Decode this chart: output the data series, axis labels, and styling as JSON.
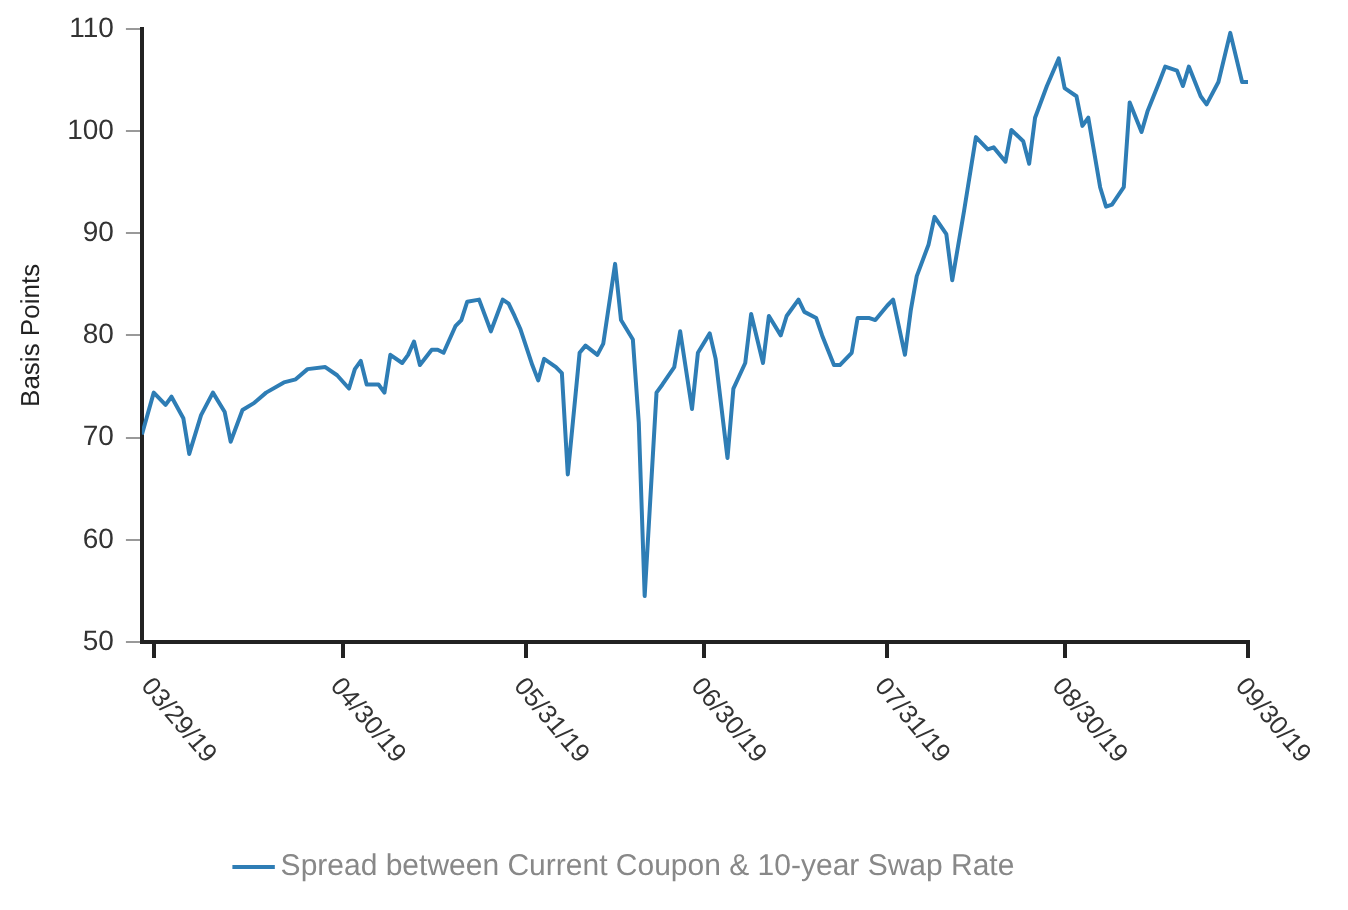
{
  "chart_data": {
    "type": "line",
    "ylabel": "Basis Points",
    "x": [
      "2019-03-27",
      "2019-03-29",
      "2019-03-31",
      "2019-04-01",
      "2019-04-03",
      "2019-04-04",
      "2019-04-06",
      "2019-04-08",
      "2019-04-10",
      "2019-04-11",
      "2019-04-13",
      "2019-04-15",
      "2019-04-17",
      "2019-04-20",
      "2019-04-22",
      "2019-04-24",
      "2019-04-27",
      "2019-04-29",
      "2019-05-01",
      "2019-05-02",
      "2019-05-03",
      "2019-05-04",
      "2019-05-06",
      "2019-05-07",
      "2019-05-08",
      "2019-05-10",
      "2019-05-11",
      "2019-05-12",
      "2019-05-13",
      "2019-05-15",
      "2019-05-16",
      "2019-05-17",
      "2019-05-19",
      "2019-05-20",
      "2019-05-21",
      "2019-05-23",
      "2019-05-25",
      "2019-05-27",
      "2019-05-28",
      "2019-05-29",
      "2019-05-30",
      "2019-06-01",
      "2019-06-02",
      "2019-06-03",
      "2019-06-05",
      "2019-06-06",
      "2019-06-07",
      "2019-06-09",
      "2019-06-10",
      "2019-06-12",
      "2019-06-13",
      "2019-06-15",
      "2019-06-16",
      "2019-06-18",
      "2019-06-19",
      "2019-06-20",
      "2019-06-22",
      "2019-06-23",
      "2019-06-25",
      "2019-06-26",
      "2019-06-28",
      "2019-06-29",
      "2019-07-01",
      "2019-07-02",
      "2019-07-04",
      "2019-07-05",
      "2019-07-07",
      "2019-07-08",
      "2019-07-10",
      "2019-07-11",
      "2019-07-13",
      "2019-07-14",
      "2019-07-16",
      "2019-07-17",
      "2019-07-19",
      "2019-07-20",
      "2019-07-22",
      "2019-07-23",
      "2019-07-25",
      "2019-07-26",
      "2019-07-28",
      "2019-07-29",
      "2019-07-31",
      "2019-08-01",
      "2019-08-03",
      "2019-08-04",
      "2019-08-05",
      "2019-08-07",
      "2019-08-08",
      "2019-08-10",
      "2019-08-11",
      "2019-08-13",
      "2019-08-15",
      "2019-08-17",
      "2019-08-18",
      "2019-08-20",
      "2019-08-21",
      "2019-08-23",
      "2019-08-24",
      "2019-08-25",
      "2019-08-27",
      "2019-08-29",
      "2019-08-30",
      "2019-09-01",
      "2019-09-02",
      "2019-09-03",
      "2019-09-05",
      "2019-09-06",
      "2019-09-07",
      "2019-09-09",
      "2019-09-10",
      "2019-09-12",
      "2019-09-13",
      "2019-09-15",
      "2019-09-16",
      "2019-09-18",
      "2019-09-19",
      "2019-09-20",
      "2019-09-22",
      "2019-09-23",
      "2019-09-25",
      "2019-09-27",
      "2019-09-29",
      "2019-09-30"
    ],
    "series": [
      {
        "name": "Spread between Current Coupon & 10-year Swap Rate",
        "color": "#2e7db5",
        "values": [
          70.3,
          74.4,
          73.2,
          74.0,
          71.9,
          68.4,
          72.2,
          74.4,
          72.5,
          69.6,
          72.7,
          73.4,
          74.4,
          75.4,
          75.7,
          76.7,
          76.9,
          76.1,
          74.8,
          76.7,
          77.5,
          75.2,
          75.2,
          74.4,
          78.1,
          77.3,
          78.1,
          79.4,
          77.1,
          78.6,
          78.6,
          78.3,
          80.9,
          81.5,
          83.3,
          83.5,
          80.4,
          83.5,
          83.1,
          81.9,
          80.6,
          77.1,
          75.6,
          77.7,
          76.9,
          76.3,
          66.4,
          78.3,
          79.0,
          78.1,
          79.2,
          87.0,
          81.5,
          79.6,
          71.5,
          54.5,
          74.4,
          75.2,
          76.9,
          80.4,
          72.8,
          78.3,
          80.2,
          77.7,
          68.0,
          74.8,
          77.3,
          82.1,
          77.3,
          81.9,
          80.0,
          81.9,
          83.5,
          82.3,
          81.7,
          80.0,
          77.1,
          77.1,
          78.3,
          81.7,
          81.7,
          81.5,
          82.9,
          83.5,
          78.1,
          82.5,
          85.8,
          88.9,
          91.6,
          89.9,
          85.4,
          92.2,
          99.4,
          98.2,
          98.4,
          97.0,
          100.1,
          99.0,
          96.8,
          101.3,
          104.4,
          107.1,
          104.2,
          103.4,
          100.5,
          101.3,
          94.5,
          92.6,
          92.8,
          94.5,
          102.8,
          99.9,
          101.9,
          104.8,
          106.3,
          105.9,
          104.4,
          106.3,
          103.4,
          102.6,
          104.8,
          109.6,
          104.8,
          104.8
        ]
      }
    ],
    "xlim": [
      "2019-03-27",
      "2019-09-30"
    ],
    "xticks": [
      {
        "value": "2019-03-29",
        "label": "03/29/19"
      },
      {
        "value": "2019-04-30",
        "label": "04/30/19"
      },
      {
        "value": "2019-05-31",
        "label": "05/31/19"
      },
      {
        "value": "2019-06-30",
        "label": "06/30/19"
      },
      {
        "value": "2019-07-31",
        "label": "07/31/19"
      },
      {
        "value": "2019-08-30",
        "label": "08/30/19"
      },
      {
        "value": "2019-09-30",
        "label": "09/30/19"
      }
    ],
    "ylim": [
      50,
      110
    ],
    "yticks": [
      50,
      60,
      70,
      80,
      90,
      100,
      110
    ],
    "grid": false,
    "legend": "bottom",
    "marker": "none",
    "line_style": "solid"
  }
}
